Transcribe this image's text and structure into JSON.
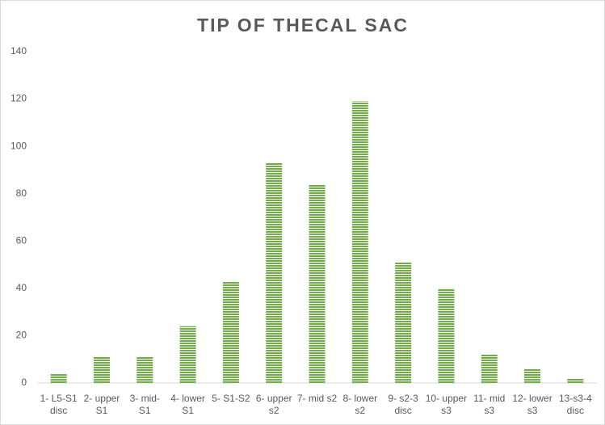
{
  "chart_data": {
    "type": "bar",
    "title": "TIP OF THECAL SAC",
    "categories": [
      "1- L5-S1 disc",
      "2- upper S1",
      "3- mid- S1",
      "4- lower S1",
      "5- S1-S2",
      "6- upper s2",
      "7- mid s2",
      "8- lower s2",
      "9- s2-3 disc",
      "10- upper s3",
      "11- mid s3",
      "12- lower s3",
      "13-s3-4 disc"
    ],
    "values": [
      4,
      11,
      11,
      24,
      43,
      93,
      84,
      119,
      51,
      40,
      12,
      6,
      2
    ],
    "color": "#70ad47",
    "ylim": [
      0,
      140
    ],
    "yticks": [
      0,
      20,
      40,
      60,
      80,
      100,
      120,
      140
    ],
    "grid": false
  }
}
